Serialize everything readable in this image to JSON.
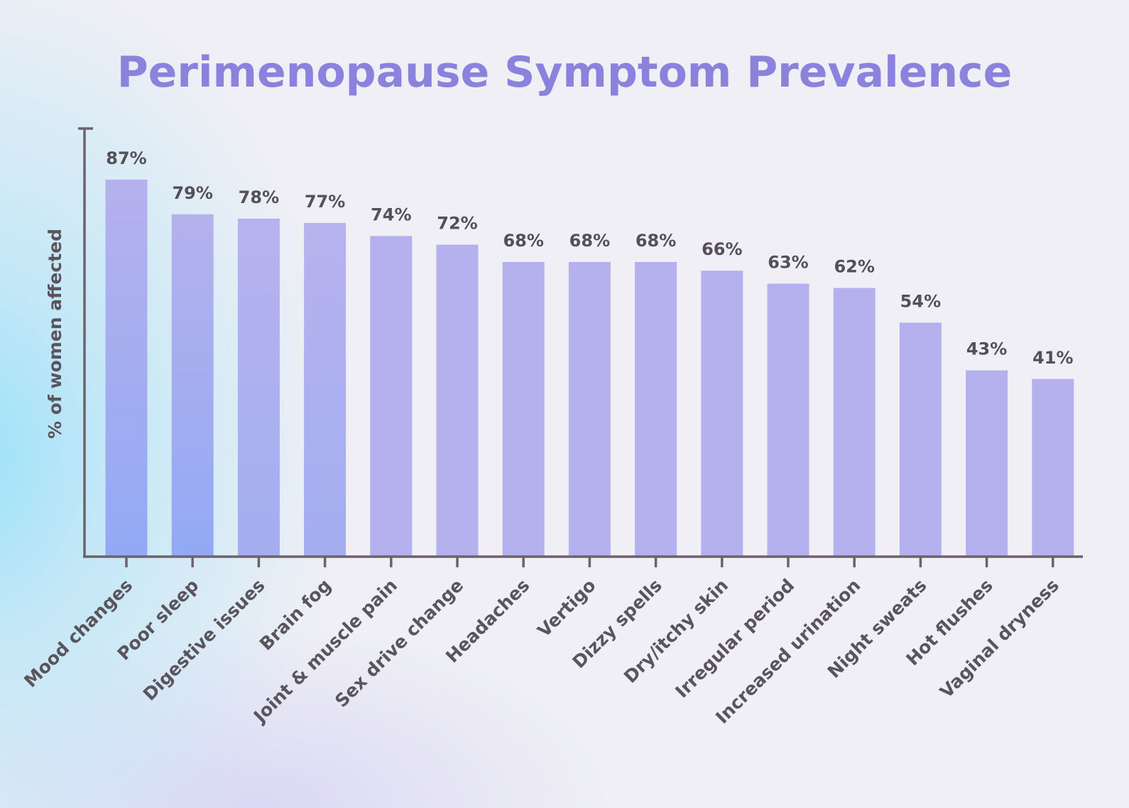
{
  "colors": {
    "title": "#8b82dd",
    "bar_top": "#b5b1ee",
    "bar_bottom_strong": "#93a9f5",
    "axis": "#6b636b",
    "label_text": "#555057"
  },
  "chart_data": {
    "type": "bar",
    "title": "Perimenopause Symptom Prevalence",
    "xlabel": "",
    "ylabel": "% of women affected",
    "ylim": [
      0,
      100
    ],
    "grid": false,
    "categories": [
      "Mood changes",
      "Poor sleep",
      "Digestive issues",
      "Brain fog",
      "Joint & muscle pain",
      "Sex drive change",
      "Headaches",
      "Vertigo",
      "Dizzy spells",
      "Dry/itchy skin",
      "Irregular period",
      "Increased urination",
      "Night sweats",
      "Hot flushes",
      "Vaginal dryness"
    ],
    "values": [
      87,
      79,
      78,
      77,
      74,
      72,
      68,
      68,
      68,
      66,
      63,
      62,
      54,
      43,
      41
    ],
    "value_labels": [
      "87%",
      "79%",
      "78%",
      "77%",
      "74%",
      "72%",
      "68%",
      "68%",
      "68%",
      "66%",
      "63%",
      "62%",
      "54%",
      "43%",
      "41%"
    ]
  }
}
